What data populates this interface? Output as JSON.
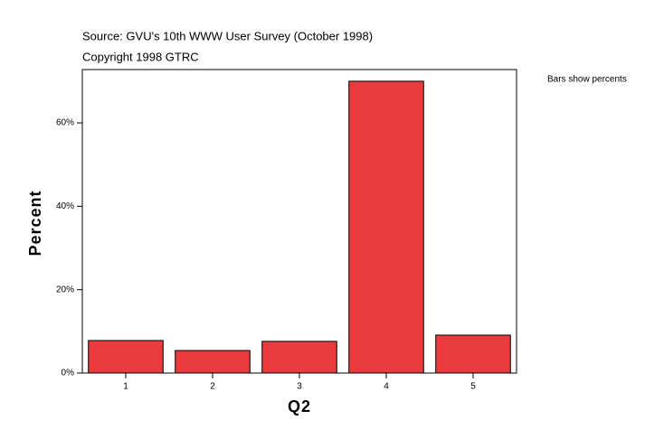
{
  "chart_data": {
    "type": "bar",
    "title": "Source: GVU's 10th WWW User Survey (October 1998)",
    "subtitle": "Copyright 1998 GTRC",
    "annotation": "Bars show percents",
    "x_label": "Q2",
    "y_label": "Percent",
    "categories": [
      "1",
      "2",
      "3",
      "4",
      "5"
    ],
    "values": [
      7.8,
      5.4,
      7.6,
      70.0,
      9.1
    ],
    "color": "#e83b3d",
    "ylim": [
      0,
      72.8
    ],
    "yticks": [
      {
        "value": 0,
        "label": "0%"
      },
      {
        "value": 20,
        "label": "20%"
      },
      {
        "value": 40,
        "label": "40%"
      },
      {
        "value": 60,
        "label": "60%"
      }
    ],
    "grid": false
  }
}
